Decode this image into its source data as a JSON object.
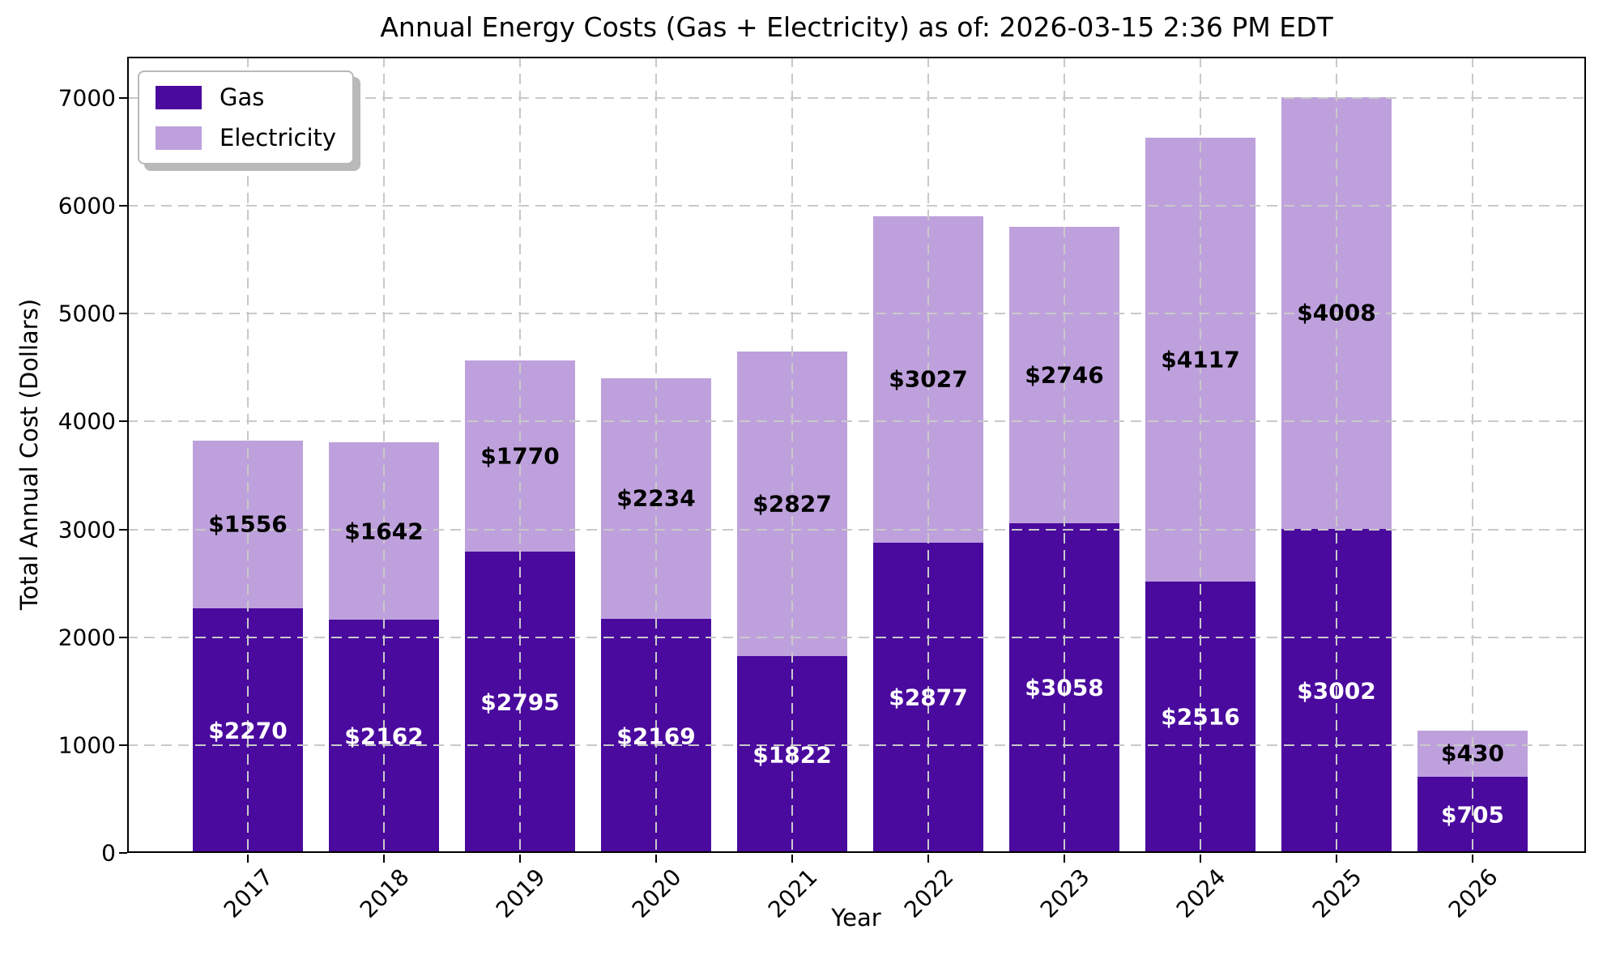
{
  "title": "Annual Energy Costs (Gas + Electricity) as of: 2026-03-15 2:36 PM EDT",
  "legend": {
    "items": [
      {
        "label": "Gas",
        "color": "#4a0a9e"
      },
      {
        "label": "Electricity",
        "color": "#bea1dc"
      }
    ]
  },
  "axes": {
    "xlabel": "Year",
    "ylabel": "Total Annual Cost (Dollars)"
  },
  "chart_data": {
    "type": "bar",
    "stacked": true,
    "title": "Annual Energy Costs (Gas + Electricity) as of: 2026-03-15 2:36 PM EDT",
    "xlabel": "Year",
    "ylabel": "Total Annual Cost (Dollars)",
    "categories": [
      "2017",
      "2018",
      "2019",
      "2020",
      "2021",
      "2022",
      "2023",
      "2024",
      "2025",
      "2026"
    ],
    "series": [
      {
        "name": "Gas",
        "color": "#4a0a9e",
        "label_color": "#ffffff",
        "values": [
          2270,
          2162,
          2795,
          2169,
          1822,
          2877,
          3058,
          2516,
          3002,
          705
        ],
        "labels": [
          "$2270",
          "$2162",
          "$2795",
          "$2169",
          "$1822",
          "$2877",
          "$3058",
          "$2516",
          "$3002",
          "$705"
        ]
      },
      {
        "name": "Electricity",
        "color": "#bea1dc",
        "label_color": "#000000",
        "values": [
          1556,
          1642,
          1770,
          2234,
          2827,
          3027,
          2746,
          4117,
          4008,
          430
        ],
        "labels": [
          "$1556",
          "$1642",
          "$1770",
          "$2234",
          "$2827",
          "$3027",
          "$2746",
          "$4117",
          "$4008",
          "$430"
        ]
      }
    ],
    "yticks": [
      0,
      1000,
      2000,
      3000,
      4000,
      5000,
      6000,
      7000
    ],
    "ytick_labels": [
      "0",
      "1000",
      "2000",
      "3000",
      "4000",
      "5000",
      "6000",
      "7000"
    ],
    "ylim": [
      0,
      7382
    ],
    "grid": "dashed gridlines on both axes, drawn above bars",
    "legend_position": "upper left"
  }
}
